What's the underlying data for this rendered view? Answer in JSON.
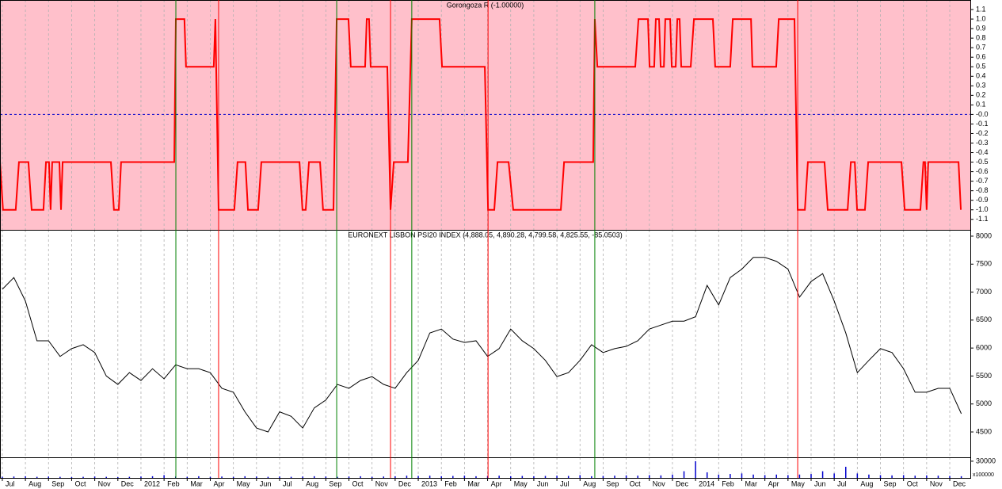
{
  "chart_data": [
    {
      "type": "line",
      "title": "Gorongoza R (-1.00000)",
      "color": "#ff0000",
      "background": "#ffc0cb",
      "hline": 0,
      "hline_color": "#0000cc",
      "xlim": [
        -0.1,
        41.89
      ],
      "ylim": [
        -1.21,
        1.2
      ],
      "yticks": [
        1.1,
        {
          "value": 1.0,
          "label": "1.0"
        },
        0.9,
        0.8,
        0.7,
        0.6,
        0.5,
        0.4,
        0.3,
        0.2,
        0.1,
        {
          "value": 0,
          "label": "-0.0"
        },
        -0.1,
        -0.2,
        -0.3,
        -0.4,
        -0.5,
        -0.6,
        -0.7,
        -0.8,
        -0.9,
        {
          "value": -1.0,
          "label": "-1.0"
        },
        -1.1
      ],
      "x": [
        -0.1,
        0.03,
        0.58,
        0.72,
        1.13,
        1.27,
        1.78,
        1.89,
        2.02,
        2.09,
        2.16,
        2.47,
        2.54,
        2.61,
        4.7,
        4.83,
        5.04,
        5.14,
        7.44,
        7.51,
        7.88,
        7.95,
        9.15,
        9.22,
        9.36,
        10.04,
        10.18,
        10.52,
        10.63,
        11.07,
        11.21,
        12.86,
        12.99,
        13.13,
        13.27,
        13.75,
        13.88,
        14.33,
        14.47,
        14.98,
        15.08,
        15.7,
        15.77,
        15.87,
        15.94,
        16.66,
        16.8,
        16.94,
        17.55,
        17.72,
        18.92,
        19.03,
        20.88,
        21.02,
        21.29,
        21.43,
        21.91,
        22.11,
        24.17,
        24.31,
        25.57,
        25.64,
        25.75,
        27.39,
        27.53,
        27.94,
        28.01,
        28.21,
        28.28,
        28.42,
        28.49,
        28.63,
        28.69,
        28.9,
        28.97,
        29.14,
        29.21,
        29.31,
        29.38,
        29.79,
        29.93,
        30.75,
        30.85,
        31.5,
        31.61,
        32.4,
        32.46,
        33.49,
        33.6,
        34.28,
        34.42,
        34.73,
        34.86,
        35.58,
        35.72,
        36.58,
        36.72,
        36.89,
        36.99,
        37.33,
        37.47,
        38.91,
        39.05,
        39.73,
        39.86,
        39.93,
        40.0,
        40.07,
        41.38,
        41.48
      ],
      "values": [
        -0.5,
        -1,
        -1,
        -0.5,
        -0.5,
        -1,
        -1,
        -0.5,
        -0.5,
        -1,
        -0.5,
        -0.5,
        -1,
        -0.5,
        -0.5,
        -1,
        -1,
        -0.5,
        -0.5,
        1,
        1,
        0.5,
        0.5,
        1,
        -1,
        -1,
        -0.5,
        -0.5,
        -1,
        -1,
        -0.5,
        -0.5,
        -1,
        -1,
        -0.5,
        -0.5,
        -1,
        -1,
        1,
        1,
        0.5,
        0.5,
        1,
        1,
        0.5,
        0.5,
        -1,
        -0.5,
        -0.5,
        1,
        1,
        0.5,
        0.5,
        -1,
        -1,
        -0.5,
        -0.5,
        -1,
        -1,
        -0.5,
        -0.5,
        1,
        0.5,
        0.5,
        1,
        1,
        0.5,
        0.5,
        1,
        1,
        0.5,
        0.5,
        1,
        1,
        0.5,
        0.5,
        1,
        1,
        0.5,
        0.5,
        1,
        1,
        0.5,
        0.5,
        1,
        1,
        0.5,
        0.5,
        1,
        1,
        -1,
        -1,
        -0.5,
        -0.5,
        -1,
        -1,
        -0.5,
        -0.5,
        -1,
        -1,
        -0.5,
        -0.5,
        -1,
        -1,
        -0.5,
        -0.5,
        -1,
        -0.5,
        -0.5,
        -1
      ]
    },
    {
      "type": "line",
      "title": "EURONEXT LISBON PSI20 INDEX (4,888.05, 4,890.28, 4,799.58, 4,825.55, -85.0503)",
      "color": "#000000",
      "background": "#ffffff",
      "xlim": [
        -0.1,
        41.89
      ],
      "ylim": [
        4047,
        8113
      ],
      "yticks": [
        8000,
        7500,
        7000,
        6500,
        6000,
        5500,
        5000,
        4500
      ],
      "x": [
        0,
        0.5,
        1,
        1.5,
        2,
        2.5,
        3,
        3.5,
        4,
        4.5,
        5,
        5.5,
        6,
        6.5,
        7,
        7.5,
        8,
        8.5,
        9,
        9.5,
        10,
        10.5,
        11,
        11.5,
        12,
        12.5,
        13,
        13.5,
        14,
        14.5,
        15,
        15.5,
        16,
        16.5,
        17,
        17.5,
        18,
        18.5,
        19,
        19.5,
        20,
        20.5,
        21,
        21.5,
        22,
        22.5,
        23,
        23.5,
        24,
        24.5,
        25,
        25.5,
        26,
        26.5,
        27,
        27.5,
        28,
        28.5,
        29,
        29.5,
        30,
        30.5,
        31,
        31.5,
        32,
        32.5,
        33,
        33.5,
        34,
        34.5,
        35,
        35.5,
        36,
        36.5,
        37,
        37.5,
        38,
        38.5,
        39,
        39.5,
        40,
        40.5,
        41,
        41.5
      ],
      "values": [
        7050,
        7260,
        6840,
        6130,
        6130,
        5850,
        5990,
        6060,
        5920,
        5500,
        5350,
        5560,
        5420,
        5630,
        5450,
        5700,
        5630,
        5630,
        5560,
        5280,
        5210,
        4860,
        4570,
        4500,
        4860,
        4780,
        4570,
        4930,
        5070,
        5350,
        5280,
        5420,
        5490,
        5350,
        5280,
        5560,
        5780,
        6270,
        6340,
        6160,
        6100,
        6130,
        5850,
        5990,
        6340,
        6130,
        5990,
        5780,
        5490,
        5560,
        5780,
        6060,
        5920,
        5990,
        6030,
        6130,
        6340,
        6410,
        6480,
        6480,
        6560,
        7120,
        6770,
        7260,
        7410,
        7620,
        7620,
        7550,
        7410,
        6910,
        7190,
        7330,
        6840,
        6270,
        5560,
        5780,
        5990,
        5920,
        5630,
        5210,
        5210,
        5280,
        5280,
        4826
      ]
    },
    {
      "type": "bar",
      "color": "#0000cc",
      "background": "#ffffff",
      "unit_label": "x100000",
      "xlim": [
        -0.1,
        41.89
      ],
      "ylim": [
        0,
        37000
      ],
      "yticks": [
        30000
      ],
      "xticks": [
        {
          "value": 0,
          "label": "Jul"
        },
        {
          "value": 1,
          "label": "Aug"
        },
        {
          "value": 2,
          "label": "Sep"
        },
        {
          "value": 3,
          "label": "Oct"
        },
        {
          "value": 4,
          "label": "Nov"
        },
        {
          "value": 5,
          "label": "Dec"
        },
        {
          "value": 6,
          "label": "2012"
        },
        {
          "value": 7,
          "label": "Feb"
        },
        {
          "value": 8,
          "label": "Mar"
        },
        {
          "value": 9,
          "label": "Apr"
        },
        {
          "value": 10,
          "label": "May"
        },
        {
          "value": 11,
          "label": "Jun"
        },
        {
          "value": 12,
          "label": "Jul"
        },
        {
          "value": 13,
          "label": "Aug"
        },
        {
          "value": 14,
          "label": "Sep"
        },
        {
          "value": 15,
          "label": "Oct"
        },
        {
          "value": 16,
          "label": "Nov"
        },
        {
          "value": 17,
          "label": "Dec"
        },
        {
          "value": 18,
          "label": "2013"
        },
        {
          "value": 19,
          "label": "Feb"
        },
        {
          "value": 20,
          "label": "Mar"
        },
        {
          "value": 21,
          "label": "Apr"
        },
        {
          "value": 22,
          "label": "May"
        },
        {
          "value": 23,
          "label": "Jun"
        },
        {
          "value": 24,
          "label": "Jul"
        },
        {
          "value": 25,
          "label": "Aug"
        },
        {
          "value": 26,
          "label": "Sep"
        },
        {
          "value": 27,
          "label": "Oct"
        },
        {
          "value": 28,
          "label": "Nov"
        },
        {
          "value": 29,
          "label": "Dec"
        },
        {
          "value": 30,
          "label": "2014"
        },
        {
          "value": 31,
          "label": "Feb"
        },
        {
          "value": 32,
          "label": "Mar"
        },
        {
          "value": 33,
          "label": "Apr"
        },
        {
          "value": 34,
          "label": "May"
        },
        {
          "value": 35,
          "label": "Jun"
        },
        {
          "value": 36,
          "label": "Jul"
        },
        {
          "value": 37,
          "label": "Aug"
        },
        {
          "value": 38,
          "label": "Sep"
        },
        {
          "value": 39,
          "label": "Oct"
        },
        {
          "value": 40,
          "label": "Nov"
        },
        {
          "value": 41,
          "label": "Dec"
        }
      ],
      "x": [
        0,
        0.5,
        1,
        1.5,
        2,
        2.5,
        3,
        3.5,
        4,
        4.5,
        5,
        5.5,
        6,
        6.5,
        7,
        7.5,
        8,
        8.5,
        9,
        9.5,
        10,
        10.5,
        11,
        11.5,
        12,
        12.5,
        13,
        13.5,
        14,
        14.5,
        15,
        15.5,
        16,
        16.5,
        17,
        17.5,
        18,
        18.5,
        19,
        19.5,
        20,
        20.5,
        21,
        21.5,
        22,
        22.5,
        23,
        23.5,
        24,
        24.5,
        25,
        25.5,
        26,
        26.5,
        27,
        27.5,
        28,
        28.5,
        29,
        29.5,
        30,
        30.5,
        31,
        31.5,
        32,
        32.5,
        33,
        33.5,
        34,
        34.5,
        35,
        35.5,
        36,
        36.5,
        37,
        37.5,
        38,
        38.5,
        39,
        39.5,
        40,
        40.5,
        41,
        41.5
      ],
      "values": [
        2000,
        2500,
        3000,
        2000,
        2500,
        2000,
        1500,
        2000,
        2500,
        2000,
        1500,
        2000,
        2500,
        3000,
        5000,
        2500,
        2000,
        3000,
        2000,
        2500,
        2000,
        3000,
        2500,
        2000,
        2500,
        2000,
        2500,
        3000,
        2500,
        2000,
        2500,
        3000,
        2000,
        2500,
        3000,
        4000,
        3500,
        4000,
        3000,
        3500,
        4000,
        3000,
        3500,
        4000,
        3000,
        3500,
        3000,
        3500,
        4000,
        3500,
        5000,
        3000,
        3500,
        4000,
        4500,
        4000,
        5000,
        4500,
        6000,
        12000,
        30000,
        10000,
        6000,
        7000,
        8000,
        6000,
        5000,
        6000,
        5000,
        6000,
        7000,
        12000,
        8000,
        20000,
        8000,
        6000,
        5000,
        4500,
        5000,
        4000,
        4500,
        4000,
        3500,
        3000
      ]
    }
  ],
  "signals": [
    {
      "x": 7.51,
      "color": "#008000"
    },
    {
      "x": 9.36,
      "color": "#ff0000"
    },
    {
      "x": 14.47,
      "color": "#008000"
    },
    {
      "x": 16.8,
      "color": "#ff0000"
    },
    {
      "x": 17.72,
      "color": "#008000"
    },
    {
      "x": 21.02,
      "color": "#ff0000"
    },
    {
      "x": 25.64,
      "color": "#008000"
    },
    {
      "x": 34.42,
      "color": "#ff0000"
    }
  ]
}
